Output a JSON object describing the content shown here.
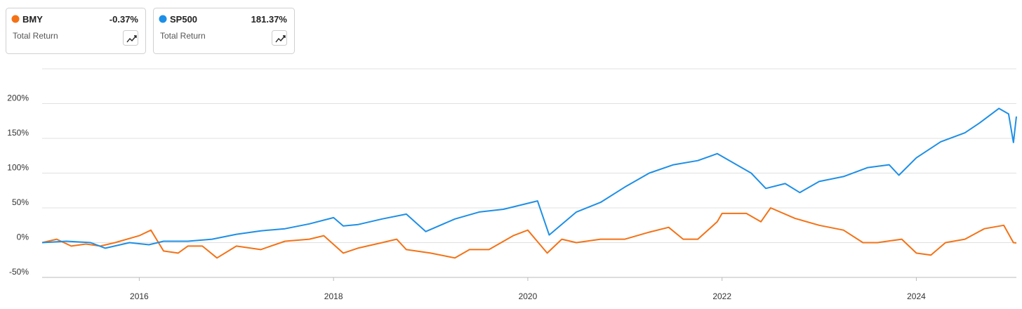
{
  "chart_data": {
    "type": "line",
    "ylim": [
      -50,
      250
    ],
    "yticks": [
      {
        "value": -50,
        "label": "-50%"
      },
      {
        "value": 0,
        "label": "0%"
      },
      {
        "value": 50,
        "label": "50%"
      },
      {
        "value": 100,
        "label": "100%"
      },
      {
        "value": 150,
        "label": "150%"
      },
      {
        "value": 200,
        "label": "200%"
      }
    ],
    "xlim": [
      2015,
      2025.03
    ],
    "xticks": [
      2016,
      2018,
      2020,
      2022,
      2024
    ],
    "grid": true,
    "series": [
      {
        "name": "BMY",
        "color": "#f47216",
        "subtitle": "Total Return",
        "total_return": {
          "value": -0.37,
          "label": "-0.37%"
        },
        "x": [
          2015,
          2015.15,
          2015.3,
          2015.45,
          2015.6,
          2015.75,
          2016,
          2016.12,
          2016.25,
          2016.4,
          2016.5,
          2016.65,
          2016.8,
          2017,
          2017.25,
          2017.5,
          2017.75,
          2017.9,
          2018.1,
          2018.25,
          2018.5,
          2018.65,
          2018.75,
          2019,
          2019.25,
          2019.4,
          2019.6,
          2019.85,
          2020,
          2020.2,
          2020.35,
          2020.5,
          2020.75,
          2021,
          2021.25,
          2021.45,
          2021.6,
          2021.75,
          2021.95,
          2022,
          2022.25,
          2022.4,
          2022.5,
          2022.75,
          2023,
          2023.25,
          2023.45,
          2023.6,
          2023.85,
          2024,
          2024.15,
          2024.3,
          2024.5,
          2024.7,
          2024.9,
          2025,
          2025.03
        ],
        "values": [
          0,
          5,
          -5,
          -2,
          -5,
          0,
          10,
          18,
          -12,
          -15,
          -5,
          -5,
          -22,
          -5,
          -10,
          2,
          5,
          10,
          -15,
          -8,
          0,
          5,
          -10,
          -15,
          -22,
          -10,
          -10,
          10,
          18,
          -15,
          5,
          0,
          5,
          5,
          15,
          22,
          5,
          5,
          30,
          42,
          42,
          30,
          50,
          35,
          25,
          18,
          0,
          0,
          5,
          -15,
          -18,
          0,
          5,
          20,
          25,
          0,
          -0.37
        ]
      },
      {
        "name": "SP500",
        "color": "#1e8fe6",
        "subtitle": "Total Return",
        "total_return": {
          "value": 181.37,
          "label": "181.37%"
        },
        "x": [
          2015,
          2015.25,
          2015.5,
          2015.65,
          2015.9,
          2016.1,
          2016.25,
          2016.5,
          2016.75,
          2017,
          2017.25,
          2017.5,
          2017.75,
          2018,
          2018.1,
          2018.25,
          2018.5,
          2018.75,
          2018.95,
          2019.25,
          2019.5,
          2019.75,
          2020.1,
          2020.22,
          2020.5,
          2020.75,
          2021,
          2021.25,
          2021.5,
          2021.75,
          2021.95,
          2022.3,
          2022.45,
          2022.65,
          2022.8,
          2023,
          2023.25,
          2023.5,
          2023.72,
          2023.82,
          2024,
          2024.25,
          2024.5,
          2024.65,
          2024.85,
          2024.95,
          2025,
          2025.03
        ],
        "values": [
          0,
          2,
          0,
          -8,
          0,
          -3,
          2,
          2,
          5,
          12,
          17,
          20,
          27,
          36,
          24,
          26,
          34,
          41,
          16,
          34,
          44,
          48,
          60,
          11,
          44,
          58,
          80,
          100,
          112,
          118,
          128,
          100,
          78,
          85,
          72,
          88,
          95,
          108,
          112,
          97,
          122,
          145,
          158,
          172,
          193,
          185,
          144,
          181.37
        ]
      }
    ]
  }
}
